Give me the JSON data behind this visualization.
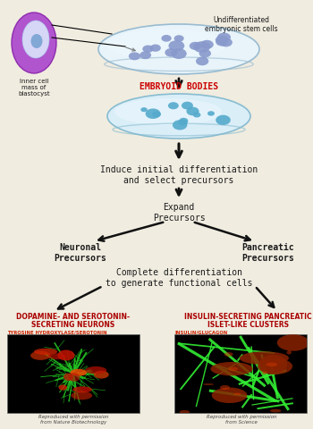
{
  "bg_color": "#f0ece0",
  "text_color": "#1a1a1a",
  "red_text_color": "#cc0000",
  "arrow_color": "#111111",
  "step1_label": "Induce initial differentiation\nand select precursors",
  "step2_label": "Expand\nPrecursors",
  "neuronal_label": "Neuronal\nPrecursors",
  "pancreatic_label": "Pancreatic\nPrecursors",
  "step3_label": "Complete differentiation\nto generate functional cells",
  "left_title1": "DOPAMINE- AND SEROTONIN-",
  "left_title2": "SECRETING NEURONS",
  "left_subtitle": "TYROSINE HYDROXYLASE/SEROTONIN",
  "left_caption": "Reproduced with permission\nfrom Nature Biotechnology",
  "right_title1": "INSULIN-SECRETING PANCREATIC",
  "right_title2": "ISLET-LIKE CLUSTERS",
  "right_subtitle": "INSULIN/GLUCAGON",
  "right_caption": "Reproduced with permission\nfrom Science",
  "embryoid_label": "EMBRYOID BODIES",
  "icm_label": "Inner cell\nmass of\nblastocyst",
  "undiff_label": "Undifferentiated\nembryonic stem cells"
}
